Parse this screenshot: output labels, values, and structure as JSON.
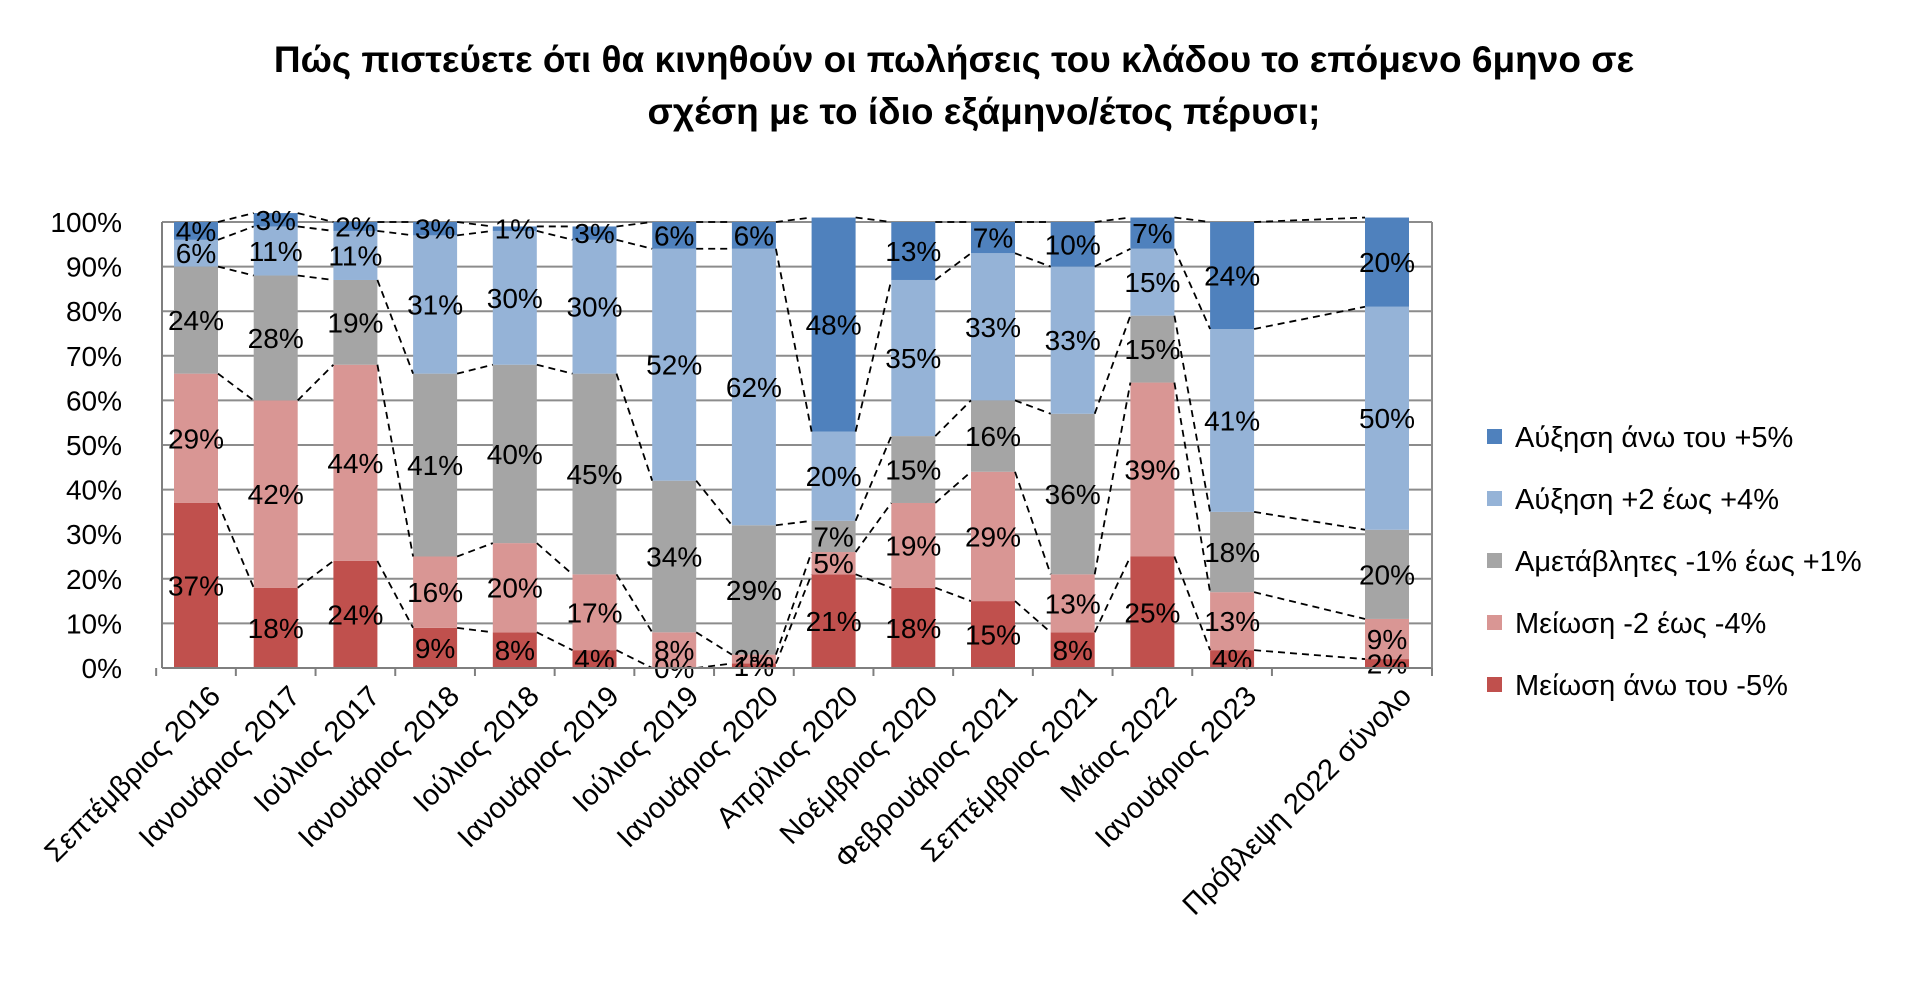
{
  "title_lines": [
    "Πώς πιστεύετε ότι θα κινηθούν οι πωλήσεις του κλάδου το επόμενο 6μηνο σε",
    "σχέση με το ίδιο εξάμηνο/έτος πέρυσι;"
  ],
  "chart_data": {
    "type": "bar",
    "stacked": true,
    "title": "Πώς πιστεύετε ότι θα κινηθούν οι πωλήσεις του κλάδου το επόμενο 6μηνο σε σχέση με το ίδιο εξάμηνο/έτος πέρυσι;",
    "xlabel": "",
    "ylabel": "",
    "ylim": [
      0,
      100
    ],
    "yticks": [
      "0%",
      "10%",
      "20%",
      "30%",
      "40%",
      "50%",
      "60%",
      "70%",
      "80%",
      "90%",
      "100%"
    ],
    "grid": true,
    "series_lines": "dashed",
    "legend_position": "right",
    "categories": [
      "Σεπτέμβριος 2016",
      "Ιανουάριος 2017",
      "Ιούλιος 2017",
      "Ιανουάριος 2018",
      "Ιούλιος 2018",
      "Ιανουάριος 2019",
      "Ιούλιος 2019",
      "Ιανουάριος 2020",
      "Απρίλιος 2020",
      "Νοέμβριος 2020",
      "Φεβρουάριος 2021",
      "Σεπτέμβριος 2021",
      "Μάιος 2022",
      "Ιανουάριος 2023",
      "Πρόβλεψη 2022 σύνολο"
    ],
    "category_gap_after_index": 13,
    "series": [
      {
        "name": "Μείωση άνω του -5%",
        "color": "#c0504d",
        "values": [
          37,
          18,
          24,
          9,
          8,
          4,
          0,
          1,
          21,
          18,
          15,
          8,
          25,
          4,
          2
        ]
      },
      {
        "name": "Μείωση -2 έως -4%",
        "color": "#d99694",
        "values": [
          29,
          42,
          44,
          16,
          20,
          17,
          8,
          2,
          5,
          19,
          29,
          13,
          39,
          13,
          9
        ]
      },
      {
        "name": "Αμετάβλητες -1% έως +1%",
        "color": "#a5a5a5",
        "values": [
          24,
          28,
          19,
          41,
          40,
          45,
          34,
          29,
          7,
          15,
          16,
          36,
          15,
          18,
          20
        ]
      },
      {
        "name": "Αύξηση +2 έως +4%",
        "color": "#95b3d7",
        "values": [
          6,
          11,
          11,
          31,
          30,
          30,
          52,
          62,
          20,
          35,
          33,
          33,
          15,
          41,
          50
        ]
      },
      {
        "name": "Αύξηση άνω του +5%",
        "color": "#4f81bd",
        "values": [
          4,
          3,
          2,
          3,
          1,
          3,
          6,
          6,
          48,
          13,
          7,
          10,
          7,
          24,
          20
        ]
      }
    ],
    "legend_order": [
      4,
      3,
      2,
      1,
      0
    ]
  }
}
